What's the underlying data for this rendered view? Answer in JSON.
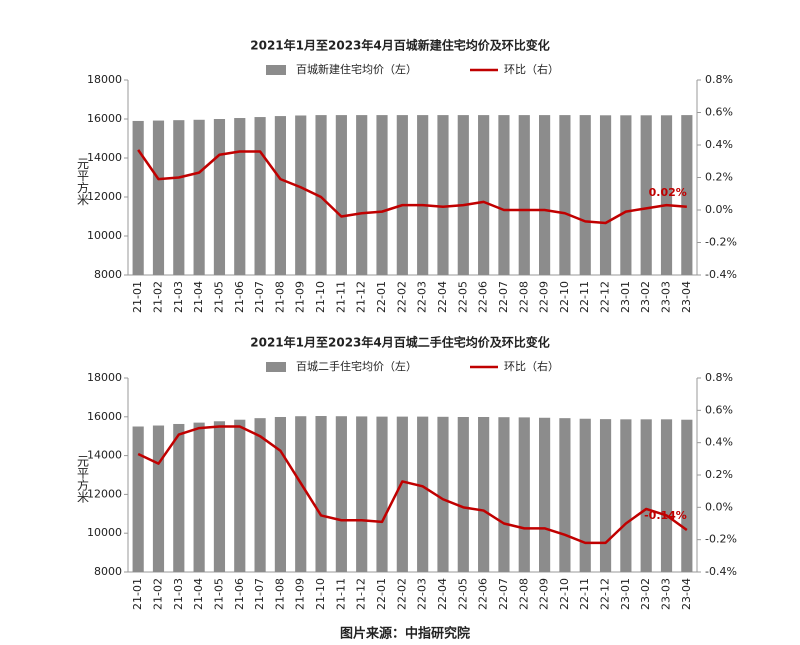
{
  "chart_data": [
    {
      "type": "bar-line",
      "title": "2021年1月至2023年4月百城新建住宅均价及环比变化",
      "y_label": "元平方米",
      "categories": [
        "21-01",
        "21-02",
        "21-03",
        "21-04",
        "21-05",
        "21-06",
        "21-07",
        "21-08",
        "21-09",
        "21-10",
        "21-11",
        "21-12",
        "22-01",
        "22-02",
        "22-03",
        "22-04",
        "22-05",
        "22-06",
        "22-07",
        "22-08",
        "22-09",
        "22-10",
        "22-11",
        "22-12",
        "23-01",
        "23-02",
        "23-03",
        "23-04"
      ],
      "series": [
        {
          "name": "百城新建住宅均价（左）",
          "color": "#8c8c8c",
          "values": [
            15900,
            15920,
            15940,
            15960,
            16000,
            16050,
            16100,
            16150,
            16180,
            16200,
            16200,
            16200,
            16200,
            16200,
            16200,
            16200,
            16200,
            16200,
            16200,
            16200,
            16200,
            16200,
            16200,
            16190,
            16190,
            16190,
            16190,
            16200
          ]
        },
        {
          "name": "环比（右）",
          "color": "#c00000",
          "axis": "y2",
          "values": [
            0.37,
            0.19,
            0.2,
            0.23,
            0.34,
            0.36,
            0.36,
            0.19,
            0.14,
            0.08,
            -0.04,
            -0.02,
            -0.01,
            0.03,
            0.03,
            0.02,
            0.03,
            0.05,
            0.0,
            0.0,
            0.0,
            -0.02,
            -0.07,
            -0.08,
            -0.01,
            0.01,
            0.03,
            0.02
          ],
          "value_labels": [
            null,
            null,
            null,
            null,
            null,
            null,
            null,
            null,
            null,
            null,
            null,
            null,
            null,
            null,
            null,
            null,
            null,
            null,
            null,
            null,
            null,
            null,
            null,
            null,
            null,
            null,
            null,
            "0.02%"
          ]
        }
      ],
      "ylim": [
        8000,
        18000
      ],
      "yticks": [
        8000,
        10000,
        12000,
        14000,
        16000,
        18000
      ],
      "y2lim": [
        -0.4,
        0.8
      ],
      "y2ticks": [
        {
          "value": -0.4,
          "label": "-0.4%"
        },
        {
          "value": -0.2,
          "label": "-0.2%"
        },
        {
          "value": 0,
          "label": "0.0%"
        },
        {
          "value": 0.2,
          "label": "0.2%"
        },
        {
          "value": 0.4,
          "label": "0.4%"
        },
        {
          "value": 0.6,
          "label": "0.6%"
        },
        {
          "value": 0.8,
          "label": "0.8%"
        }
      ]
    },
    {
      "type": "bar-line",
      "title": "2021年1月至2023年4月百城二手住宅均价及环比变化",
      "y_label": "元平方米",
      "categories": [
        "21-01",
        "21-02",
        "21-03",
        "21-04",
        "21-05",
        "21-06",
        "21-07",
        "21-08",
        "21-09",
        "21-10",
        "21-11",
        "21-12",
        "22-01",
        "22-02",
        "22-03",
        "22-04",
        "22-05",
        "22-06",
        "22-07",
        "22-08",
        "22-09",
        "22-10",
        "22-11",
        "22-12",
        "23-01",
        "23-02",
        "23-03",
        "23-04"
      ],
      "series": [
        {
          "name": "百城二手住宅均价（左）",
          "color": "#8c8c8c",
          "values": [
            15500,
            15550,
            15630,
            15700,
            15770,
            15850,
            15930,
            15990,
            16030,
            16040,
            16030,
            16020,
            16010,
            16010,
            16010,
            16000,
            15990,
            15990,
            15980,
            15970,
            15950,
            15930,
            15900,
            15880,
            15870,
            15870,
            15870,
            15850
          ]
        },
        {
          "name": "环比（右）",
          "color": "#c00000",
          "axis": "y2",
          "values": [
            0.33,
            0.27,
            0.45,
            0.49,
            0.5,
            0.5,
            0.44,
            0.35,
            0.15,
            -0.05,
            -0.08,
            -0.08,
            -0.09,
            0.16,
            0.13,
            0.05,
            0.0,
            -0.02,
            -0.1,
            -0.13,
            -0.13,
            -0.17,
            -0.22,
            -0.22,
            -0.1,
            -0.01,
            -0.05,
            -0.14
          ],
          "value_labels": [
            null,
            null,
            null,
            null,
            null,
            null,
            null,
            null,
            null,
            null,
            null,
            null,
            null,
            null,
            null,
            null,
            null,
            null,
            null,
            null,
            null,
            null,
            null,
            null,
            null,
            null,
            null,
            "-0.14%"
          ]
        }
      ],
      "ylim": [
        8000,
        18000
      ],
      "yticks": [
        8000,
        10000,
        12000,
        14000,
        16000,
        18000
      ],
      "y2lim": [
        -0.4,
        0.8
      ],
      "y2ticks": [
        {
          "value": -0.4,
          "label": "-0.4%"
        },
        {
          "value": -0.2,
          "label": "-0.2%"
        },
        {
          "value": 0,
          "label": "0.0%"
        },
        {
          "value": 0.2,
          "label": "0.2%"
        },
        {
          "value": 0.4,
          "label": "0.4%"
        },
        {
          "value": 0.6,
          "label": "0.6%"
        },
        {
          "value": 0.8,
          "label": "0.8%"
        }
      ]
    }
  ],
  "footer": "图片来源：中指研究院"
}
